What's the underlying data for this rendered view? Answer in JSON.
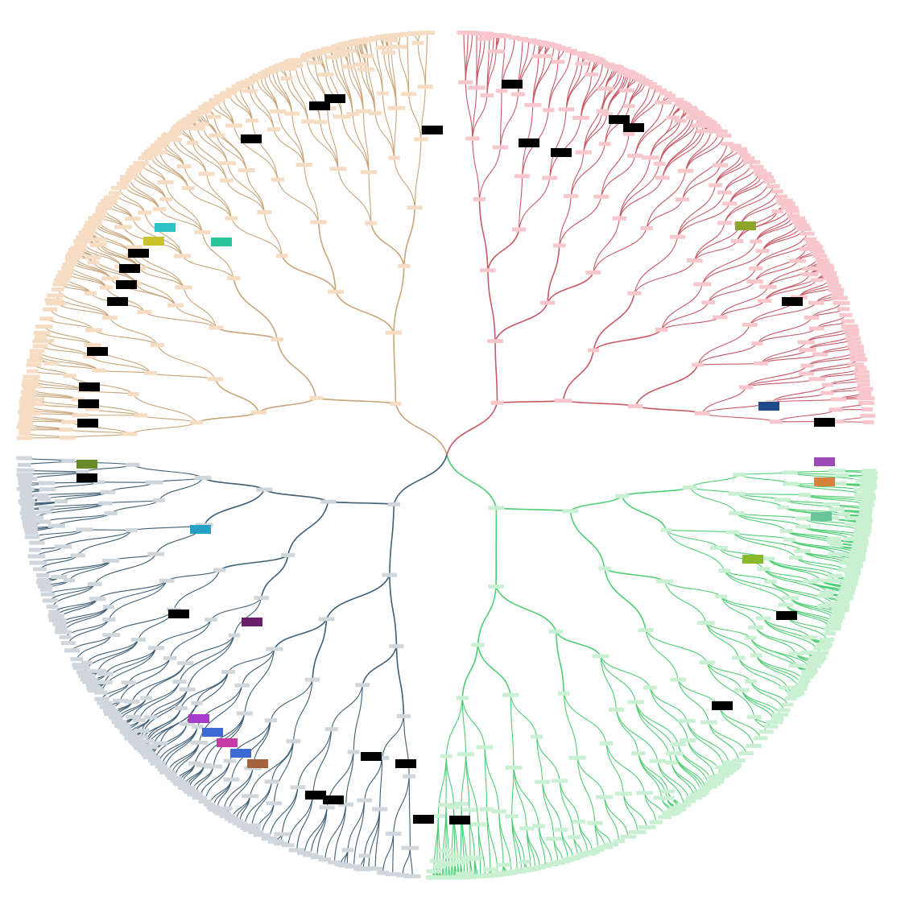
{
  "diagram": {
    "type": "radial-tree",
    "center_label": "",
    "colors": {
      "tan": "#c9a57a",
      "tan_box": "#f5dcc2",
      "red": "#c85a66",
      "red_box": "#f7c7cc",
      "green": "#4fce74",
      "green_box": "#c9f0d3",
      "slate": "#3f5f75",
      "slate_box": "#cfd6dc"
    },
    "branches": [
      {
        "name": "tan",
        "direction": "upper-left",
        "color_key": "tan"
      },
      {
        "name": "red",
        "direction": "upper-right",
        "color_key": "red"
      },
      {
        "name": "green",
        "direction": "lower-right",
        "color_key": "green"
      },
      {
        "name": "slate",
        "direction": "lower-left",
        "color_key": "slate"
      }
    ],
    "marker_blocks": [
      {
        "color": "#000000"
      },
      {
        "color": "#2cc4c4"
      },
      {
        "color": "#c9c42c"
      },
      {
        "color": "#2cc49a"
      },
      {
        "color": "#8aa62c"
      },
      {
        "color": "#1f4a8a"
      },
      {
        "color": "#6a8a2c"
      },
      {
        "color": "#27a0c8"
      },
      {
        "color": "#6a1f6a"
      },
      {
        "color": "#a63cc8"
      },
      {
        "color": "#3c6ad2"
      },
      {
        "color": "#b8862c"
      },
      {
        "color": "#c83ca6"
      },
      {
        "color": "#a6623c"
      },
      {
        "color": "#d6823c"
      },
      {
        "color": "#9c4ab8"
      },
      {
        "color": "#6ac49a"
      },
      {
        "color": "#8ab82c"
      }
    ]
  }
}
